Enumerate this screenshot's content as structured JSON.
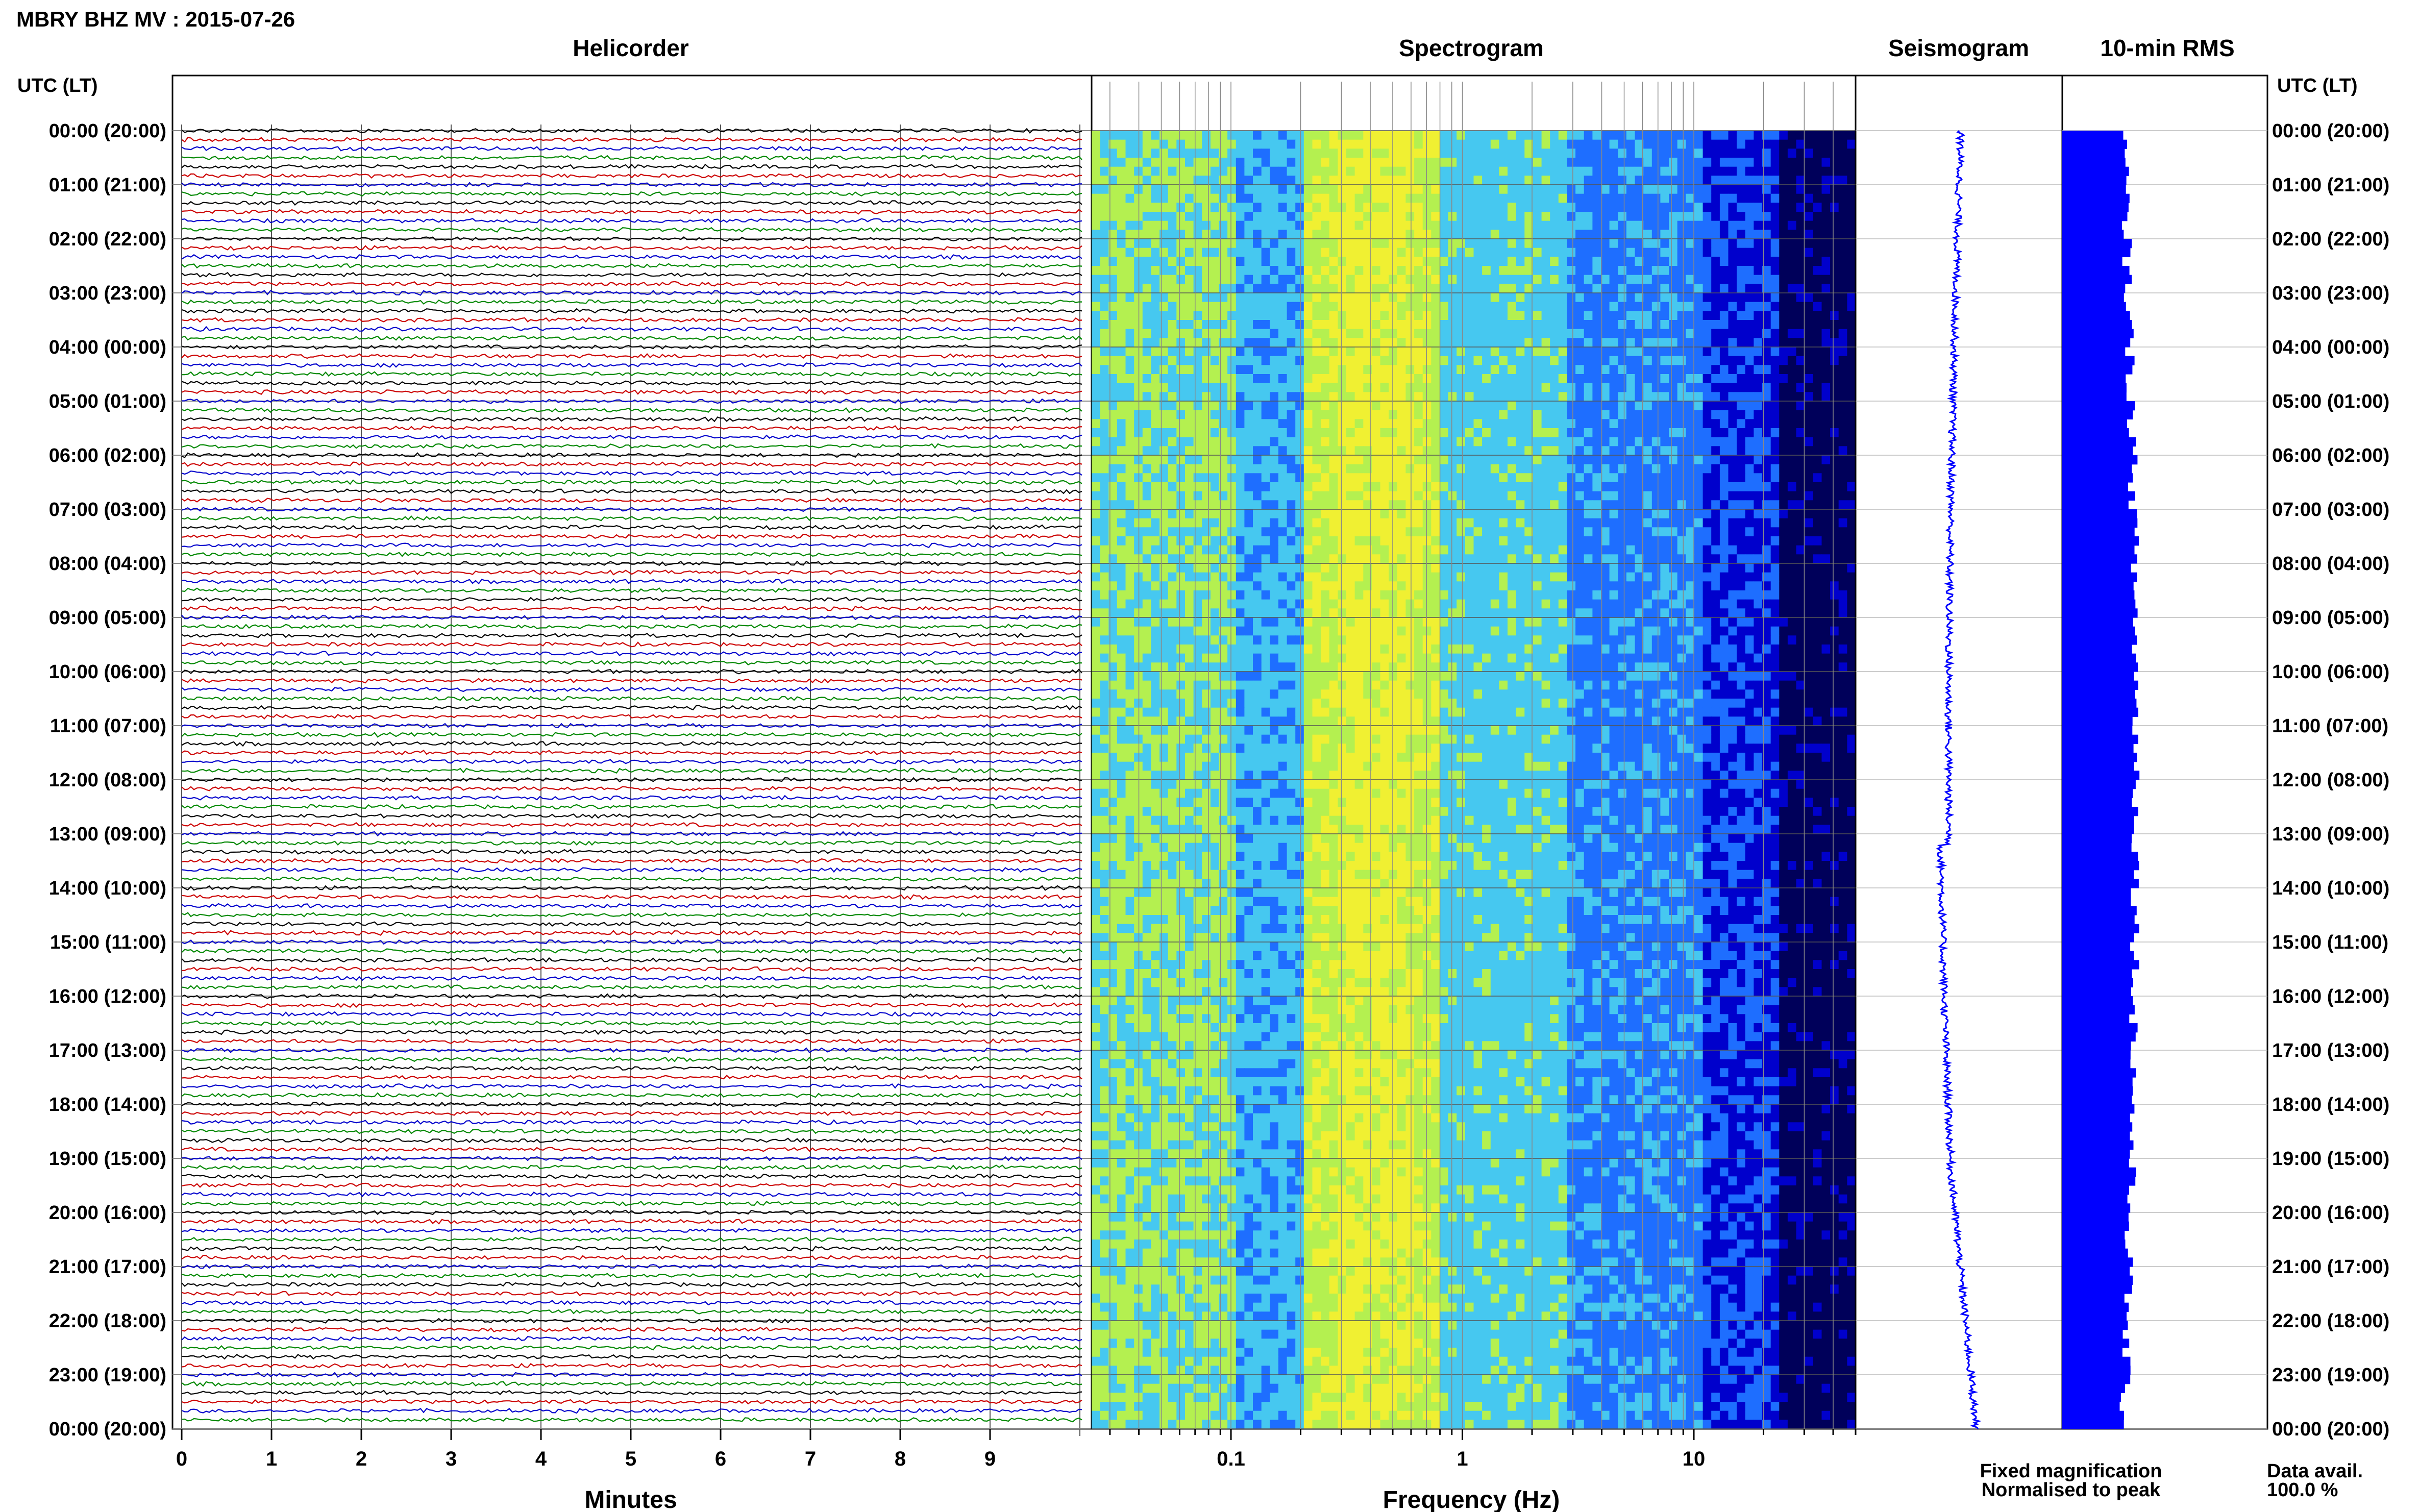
{
  "header": {
    "title": "MBRY BHZ MV : 2015-07-26",
    "utc_label_left": "UTC (LT)",
    "utc_label_right": "UTC (LT)"
  },
  "panels": {
    "helicorder": "Helicorder",
    "spectrogram": "Spectrogram",
    "seismogram": "Seismogram",
    "rms": "10-min RMS"
  },
  "time_labels": [
    "00:00 (20:00)",
    "01:00 (21:00)",
    "02:00 (22:00)",
    "03:00 (23:00)",
    "04:00 (00:00)",
    "05:00 (01:00)",
    "06:00 (02:00)",
    "07:00 (03:00)",
    "08:00 (04:00)",
    "09:00 (05:00)",
    "10:00 (06:00)",
    "11:00 (07:00)",
    "12:00 (08:00)",
    "13:00 (09:00)",
    "14:00 (10:00)",
    "15:00 (11:00)",
    "16:00 (12:00)",
    "17:00 (13:00)",
    "18:00 (14:00)",
    "19:00 (15:00)",
    "20:00 (16:00)",
    "21:00 (17:00)",
    "22:00 (18:00)",
    "23:00 (19:00)",
    "00:00 (20:00)"
  ],
  "chart_data": [
    {
      "type": "line",
      "title": "Helicorder",
      "xlabel": "Minutes",
      "x_ticks": [
        "0",
        "1",
        "2",
        "3",
        "4",
        "5",
        "6",
        "7",
        "8",
        "9"
      ],
      "xlim": [
        0,
        10
      ],
      "ylim_hours": [
        0,
        24
      ],
      "rows_per_hour": 6,
      "trace_colors": [
        "#000000",
        "#cc0000",
        "#0000cc",
        "#008800"
      ],
      "grid": true
    },
    {
      "type": "heatmap",
      "title": "Spectrogram",
      "xlabel": "Frequency (Hz)",
      "x_ticks": [
        "0.1",
        "1",
        "10"
      ],
      "x_scale": "log",
      "xlim_hz": [
        0.025,
        50
      ],
      "ylim_hours": [
        0,
        24
      ],
      "colormap": [
        "#00005a",
        "#0000cc",
        "#1e6eff",
        "#46c8f0",
        "#b4f050",
        "#f0f032"
      ]
    },
    {
      "type": "line",
      "title": "Seismogram",
      "ylim_hours": [
        0,
        24
      ],
      "trace_color": "#0000ff",
      "legend": "Fixed magnification",
      "legend_color": "#0000ff"
    },
    {
      "type": "bar",
      "title": "10-min RMS",
      "ylim_hours": [
        0,
        24
      ],
      "bar_color": "#0000ff",
      "legend": "Normalised to peak",
      "legend_color": "#ff0000"
    }
  ],
  "footer": {
    "data_avail_label": "Data avail.",
    "data_avail_value": "100.0 %"
  }
}
